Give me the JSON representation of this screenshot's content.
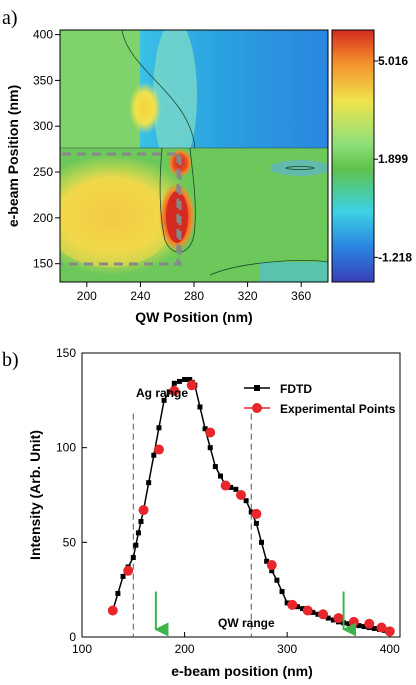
{
  "chart_data": [
    {
      "panel_label": "a)",
      "type": "heatmap",
      "xlabel": "QW Position (nm)",
      "ylabel": "e-beam Position (nm)",
      "xlim": [
        180,
        380
      ],
      "ylim": [
        130,
        405
      ],
      "xticks": [
        "200",
        "240",
        "280",
        "320",
        "360"
      ],
      "yticks": [
        "150",
        "200",
        "250",
        "300",
        "350",
        "400"
      ],
      "colorbar": {
        "ticks": [
          "5.016",
          "1.899",
          "-1.218"
        ],
        "tick_values": [
          5.016,
          1.899,
          -1.218
        ],
        "range": [
          -2.0,
          6.0
        ],
        "colors": [
          "#3a3fb8",
          "#2a86e0",
          "#3cd2e6",
          "#8fe07a",
          "#5fc24a",
          "#f0e34a",
          "#f28a2a",
          "#d42a20"
        ]
      },
      "hot_spot": {
        "x": 266,
        "y": 200,
        "value": 6.0
      },
      "dashed_box": {
        "x_range": [
          180,
          270
        ],
        "y_range": [
          150,
          270
        ]
      },
      "vertical_dashed_line_x": 268
    },
    {
      "panel_label": "b)",
      "type": "line",
      "xlabel": "e-beam position (nm)",
      "ylabel": "Intensity (Arb. Unit)",
      "xlim": [
        100,
        410
      ],
      "ylim": [
        0,
        150
      ],
      "xticks": [
        "100",
        "200",
        "300",
        "400"
      ],
      "yticks": [
        "0",
        "50",
        "100",
        "150"
      ],
      "series": [
        {
          "name": "FDTD",
          "color": "#000000",
          "x": [
            130,
            140,
            150,
            155,
            160,
            170,
            180,
            190,
            200,
            205,
            210,
            220,
            230,
            240,
            250,
            260,
            270,
            280,
            290,
            300,
            310,
            320,
            330,
            340,
            350,
            360,
            370,
            380,
            390,
            400
          ],
          "y": [
            14,
            32,
            42,
            55,
            67,
            96,
            125,
            134,
            136,
            136,
            133,
            110,
            90,
            80,
            78,
            72,
            60,
            40,
            30,
            18,
            16,
            14,
            12,
            10,
            8,
            7,
            6,
            5,
            4,
            3
          ]
        },
        {
          "name": "Experimental Points",
          "color": "#e8262b",
          "x": [
            130,
            145,
            160,
            175,
            190,
            207,
            225,
            240,
            255,
            270,
            285,
            305,
            320,
            335,
            350,
            365,
            380,
            392,
            400
          ],
          "y": [
            14,
            35,
            67,
            99,
            130,
            133,
            108,
            80,
            75,
            65,
            38,
            17,
            14,
            12,
            10,
            8,
            7,
            5,
            3
          ]
        }
      ],
      "annotations": [
        "Ag range",
        "QW range"
      ],
      "dashed_lines_x": [
        150,
        265
      ],
      "arrows_x": [
        172,
        355
      ],
      "arrow_color": "#3cb44b",
      "legend_position": "top-right"
    }
  ]
}
